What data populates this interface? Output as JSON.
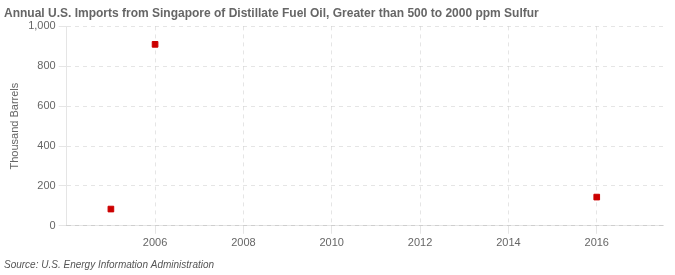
{
  "chart_data": {
    "type": "scatter",
    "title": "Annual U.S. Imports from Singapore of Distillate Fuel Oil, Greater than 500 to 2000 ppm Sulfur",
    "ylabel": "Thousand Barrels",
    "annotations": [
      "Source: U.S. Energy Information Administration"
    ],
    "x": [
      2005,
      2006,
      2016
    ],
    "values": [
      84,
      910,
      144
    ],
    "color": "#cc0000",
    "marker": "square",
    "xlim": [
      2004.0,
      2017.5
    ],
    "ylim": [
      0,
      1000
    ],
    "xticks": [
      2006,
      2008,
      2010,
      2012,
      2014,
      2016
    ],
    "yticks": [
      0,
      200,
      400,
      600,
      800,
      {
        "value": 1000,
        "label": "1,000"
      }
    ],
    "grid": true
  }
}
